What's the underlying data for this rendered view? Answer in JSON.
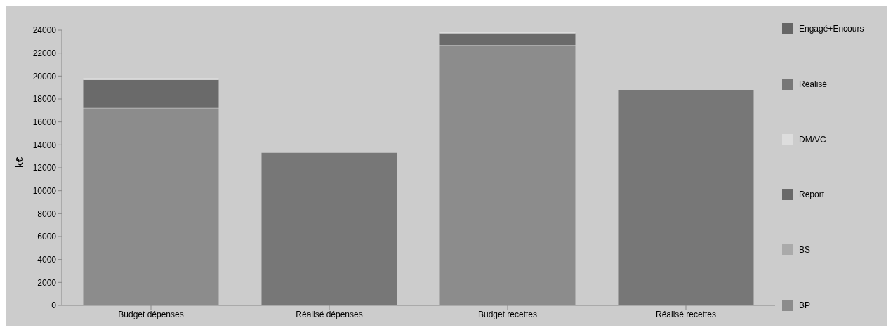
{
  "chart_data": {
    "type": "bar",
    "ylabel": "k€",
    "categories": [
      "Budget dépenses",
      "Réalisé dépenses",
      "Budget recettes",
      "Réalisé recettes"
    ],
    "stacked": true,
    "series": [
      {
        "name": "BP",
        "color": "#8c8c8c",
        "values": [
          17100,
          0,
          22600,
          0
        ]
      },
      {
        "name": "BS",
        "color": "#aaaaaa",
        "values": [
          120,
          0,
          120,
          0
        ]
      },
      {
        "name": "Report",
        "color": "#6a6a6a",
        "values": [
          2450,
          0,
          1000,
          0
        ]
      },
      {
        "name": "DM/VC",
        "color": "#dddddd",
        "values": [
          150,
          0,
          120,
          0
        ]
      },
      {
        "name": "Réalisé",
        "color": "#777777",
        "values": [
          0,
          13300,
          0,
          18800
        ]
      },
      {
        "name": "Engagé+Encours",
        "color": "#666666",
        "values": [
          0,
          0,
          0,
          0
        ]
      }
    ],
    "ylim": [
      0,
      24000
    ],
    "yticks": [
      0,
      2000,
      4000,
      6000,
      8000,
      10000,
      12000,
      14000,
      16000,
      18000,
      20000,
      22000,
      24000
    ],
    "legend": "right"
  }
}
